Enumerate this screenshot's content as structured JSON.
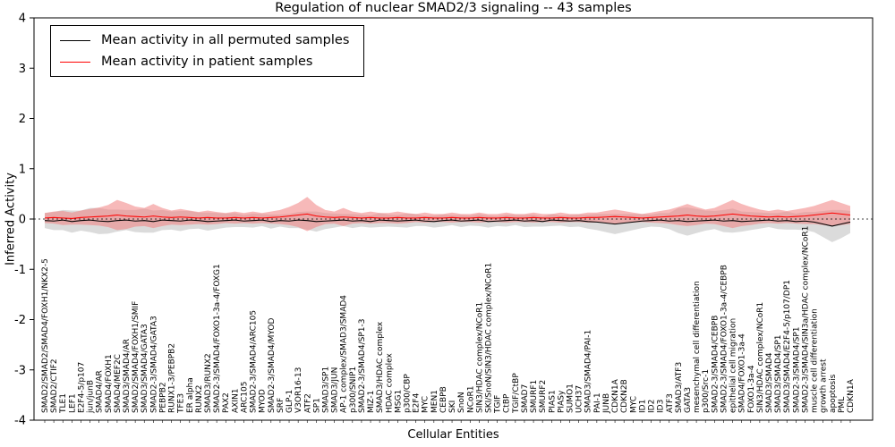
{
  "chart_data": {
    "type": "line",
    "title": "Regulation of nuclear SMAD2/3 signaling -- 43 samples",
    "xlabel": "Cellular Entities",
    "ylabel": "Inferred Activity",
    "ylim": [
      -4,
      4
    ],
    "yticks": [
      -4,
      -3,
      -2,
      -1,
      0,
      1,
      2,
      3,
      4
    ],
    "grid": false,
    "zero_line_dashed": true,
    "legend_position": "upper left",
    "legend": [
      "Mean activity in all permuted samples",
      "Mean activity in patient samples"
    ],
    "colors": {
      "permuted_line": "#000000",
      "patient_line": "#ff0000",
      "permuted_band": "#b0b0b0",
      "patient_band": "#f08080"
    },
    "entities": [
      "SMAD2/SMAD2/SMAD4/FOXH1/NKX2-5",
      "SMAD2/CTIF2",
      "TLE1",
      "LEF1",
      "E2F4-5/p107",
      "jun/junB",
      "SMAD4/AR",
      "SMAD4/FOXH1",
      "SMAD4/MEF2C",
      "SMAD3/SMAD4/AR",
      "SMAD2/SMAD4/FOXH1/SMIF",
      "SMAD3/SMAD4/GATA3",
      "SMAD2-3/SMAD4/GATA3",
      "PEBPB2",
      "RUNX1-3/PEBPB2",
      "TFE3",
      "ER alpha",
      "RUNX2",
      "SMAD3/RUNX2",
      "SMAD2-3/SMAD4/FOXO1-3a-4/FOXG1",
      "PAX2",
      "AXIN1",
      "ARC105",
      "SMAD2-3/SMAD4/ARC105",
      "MYOD",
      "SMAD2-3/SMAD4/MYOD",
      "SRF",
      "GLP-1",
      "V3OR16-13",
      "ATF2",
      "SP1",
      "SMAD3/SP1",
      "SMAD3/JUN",
      "AP-1 complex/SMAD3/SMAD4",
      "p300/SNIP1",
      "SMAD2-3/SMAD4/SP1-3",
      "MIZ-1",
      "SMAD3/HDAC complex",
      "HDAC complex",
      "MSG1",
      "p300/CBP",
      "E2F4",
      "MYC",
      "MEN1",
      "CEBPB",
      "SKI",
      "SnoN",
      "NCoR1",
      "SIN3/HDAC complex/NCoR1",
      "SKI/SnoN/SIN3/HDAC complex/NCoR1",
      "TGIF",
      "CtBP",
      "TGIF/CtBP",
      "SMAD7",
      "SMURF1",
      "SMURF2",
      "PIAS1",
      "PIASy",
      "SUMO1",
      "UCH37",
      "SMAD3/SMAD4/PAI-1",
      "PAI-1",
      "JUNB",
      "CDKN1A",
      "CDKN2B",
      "MYC",
      "ID1",
      "ID2",
      "ID3",
      "ATF3",
      "SMAD3/ATF3",
      "GATA3",
      "mesenchymal cell differentiation",
      "p300/Src-1",
      "SMAD2-3/SMAD4/CEBPB",
      "SMAD2-3/SMAD4/FOXO1-3a-4/CEBPB",
      "epithelial cell migration",
      "SMAD4/FOXO1-3a-4",
      "FOXO1-3a-4",
      "SIN3/HDAC complex/NCoR1",
      "SMAD3/SMAD4",
      "SMAD3/SMAD4/SP1",
      "SMAD3/SMAD4/E2F4-5/p107/DP1",
      "SMAD2-3/SMAD4/SP1",
      "SMAD2-3/SMAD4/SIN3a/HDAC complex/NCoR1",
      "muscle cell differentiation",
      "growth arrest",
      "apoptosis",
      "PML",
      "CDKN1A"
    ],
    "series": [
      {
        "name": "Mean activity in all permuted samples",
        "values": [
          -0.03,
          -0.04,
          -0.02,
          -0.05,
          -0.03,
          -0.02,
          -0.04,
          -0.05,
          -0.03,
          -0.02,
          -0.04,
          -0.03,
          -0.05,
          -0.02,
          -0.03,
          -0.04,
          -0.02,
          -0.03,
          -0.05,
          -0.04,
          -0.03,
          -0.02,
          -0.04,
          -0.03,
          -0.02,
          -0.05,
          -0.03,
          -0.04,
          -0.02,
          -0.03,
          -0.05,
          -0.04,
          -0.03,
          -0.02,
          -0.04,
          -0.03,
          -0.05,
          -0.02,
          -0.03,
          -0.04,
          -0.03,
          -0.02,
          -0.04,
          -0.05,
          -0.03,
          -0.02,
          -0.04,
          -0.03,
          -0.02,
          -0.05,
          -0.04,
          -0.03,
          -0.02,
          -0.04,
          -0.03,
          -0.05,
          -0.02,
          -0.03,
          -0.04,
          -0.03,
          -0.05,
          -0.06,
          -0.08,
          -0.1,
          -0.08,
          -0.06,
          -0.04,
          -0.03,
          -0.02,
          -0.04,
          -0.03,
          -0.05,
          -0.04,
          -0.03,
          -0.02,
          -0.04,
          -0.03,
          -0.05,
          -0.04,
          -0.03,
          -0.02,
          -0.04,
          -0.03,
          -0.05,
          -0.04,
          -0.06,
          -0.1,
          -0.14,
          -0.1,
          -0.06
        ],
        "band_halfwidth": [
          0.15,
          0.18,
          0.2,
          0.22,
          0.2,
          0.24,
          0.26,
          0.24,
          0.22,
          0.2,
          0.22,
          0.24,
          0.22,
          0.2,
          0.18,
          0.2,
          0.18,
          0.16,
          0.18,
          0.16,
          0.14,
          0.14,
          0.12,
          0.14,
          0.12,
          0.14,
          0.12,
          0.14,
          0.16,
          0.18,
          0.2,
          0.16,
          0.14,
          0.12,
          0.14,
          0.12,
          0.12,
          0.14,
          0.12,
          0.12,
          0.14,
          0.12,
          0.1,
          0.12,
          0.12,
          0.1,
          0.12,
          0.1,
          0.12,
          0.12,
          0.1,
          0.12,
          0.1,
          0.12,
          0.12,
          0.1,
          0.12,
          0.1,
          0.12,
          0.12,
          0.14,
          0.16,
          0.18,
          0.2,
          0.18,
          0.16,
          0.14,
          0.12,
          0.14,
          0.16,
          0.25,
          0.28,
          0.24,
          0.2,
          0.18,
          0.22,
          0.24,
          0.2,
          0.18,
          0.16,
          0.14,
          0.16,
          0.18,
          0.16,
          0.18,
          0.2,
          0.26,
          0.32,
          0.28,
          0.22
        ]
      },
      {
        "name": "Mean activity in patient samples",
        "values": [
          0.02,
          0.03,
          0.02,
          0.01,
          0.03,
          0.04,
          0.05,
          0.06,
          0.08,
          0.06,
          0.05,
          0.04,
          0.06,
          0.04,
          0.03,
          0.04,
          0.03,
          0.02,
          0.03,
          0.02,
          0.02,
          0.03,
          0.02,
          0.03,
          0.02,
          0.03,
          0.04,
          0.06,
          0.08,
          0.1,
          0.06,
          0.04,
          0.03,
          0.04,
          0.03,
          0.02,
          0.03,
          0.02,
          0.02,
          0.03,
          0.02,
          0.02,
          0.03,
          0.02,
          0.02,
          0.03,
          0.02,
          0.02,
          0.03,
          0.02,
          0.02,
          0.03,
          0.02,
          0.02,
          0.03,
          0.02,
          0.02,
          0.03,
          0.02,
          0.02,
          0.03,
          0.03,
          0.04,
          0.05,
          0.04,
          0.03,
          0.02,
          0.03,
          0.04,
          0.05,
          0.06,
          0.08,
          0.06,
          0.05,
          0.06,
          0.08,
          0.1,
          0.08,
          0.06,
          0.05,
          0.04,
          0.05,
          0.04,
          0.05,
          0.06,
          0.08,
          0.1,
          0.12,
          0.1,
          0.08
        ],
        "band_halfwidth": [
          0.1,
          0.12,
          0.14,
          0.12,
          0.14,
          0.16,
          0.18,
          0.22,
          0.3,
          0.26,
          0.2,
          0.18,
          0.24,
          0.18,
          0.14,
          0.16,
          0.14,
          0.12,
          0.14,
          0.12,
          0.1,
          0.12,
          0.1,
          0.12,
          0.1,
          0.12,
          0.14,
          0.18,
          0.24,
          0.34,
          0.22,
          0.14,
          0.12,
          0.18,
          0.12,
          0.1,
          0.12,
          0.1,
          0.1,
          0.12,
          0.1,
          0.08,
          0.1,
          0.08,
          0.08,
          0.1,
          0.08,
          0.08,
          0.1,
          0.08,
          0.08,
          0.1,
          0.08,
          0.08,
          0.1,
          0.08,
          0.08,
          0.1,
          0.08,
          0.08,
          0.1,
          0.1,
          0.12,
          0.14,
          0.12,
          0.1,
          0.08,
          0.1,
          0.12,
          0.14,
          0.18,
          0.22,
          0.18,
          0.14,
          0.16,
          0.22,
          0.28,
          0.22,
          0.18,
          0.14,
          0.12,
          0.14,
          0.12,
          0.14,
          0.16,
          0.18,
          0.22,
          0.26,
          0.22,
          0.18
        ]
      }
    ]
  }
}
